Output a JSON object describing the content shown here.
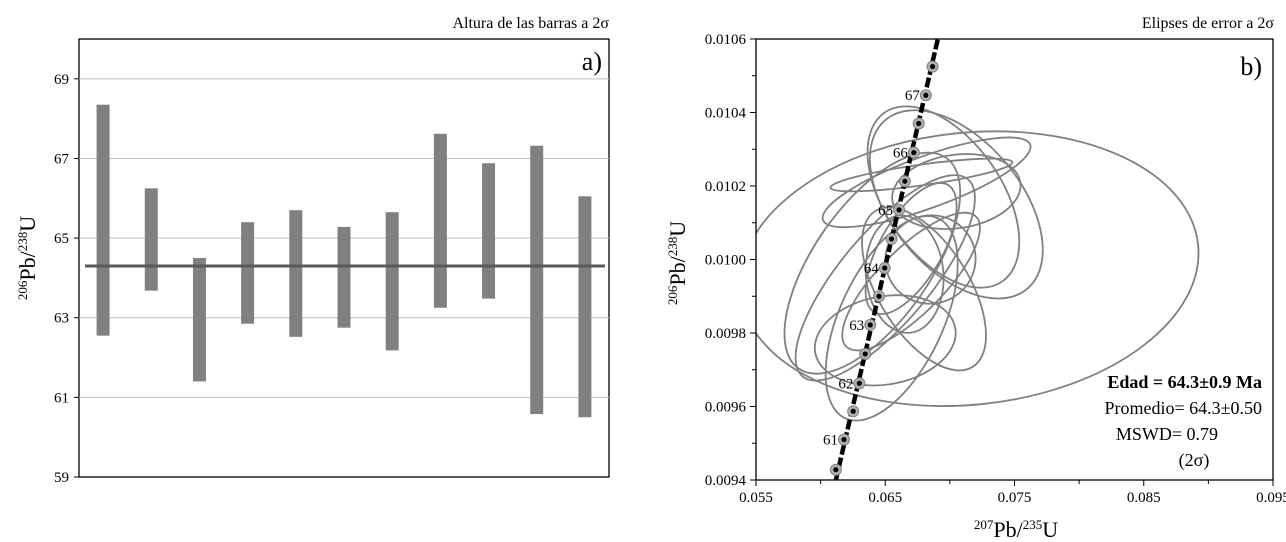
{
  "chart_data": [
    {
      "type": "bar",
      "subtype": "error-bar (range) plot",
      "title": "Altura de las barras a 2σ",
      "panel_label": "a)",
      "ylabel": {
        "sup1": "206",
        "main1": "Pb/",
        "sup2": "238",
        "main2": "U"
      },
      "ylim": [
        59,
        70
      ],
      "yticks": [
        59,
        61,
        63,
        65,
        67,
        69
      ],
      "grid": true,
      "bar_color": "#808080",
      "mean_line_color": "#595959",
      "mean": 64.3,
      "ranges": [
        [
          62.55,
          68.35
        ],
        [
          63.68,
          66.25
        ],
        [
          61.4,
          64.5
        ],
        [
          62.85,
          65.4
        ],
        [
          62.52,
          65.7
        ],
        [
          62.75,
          65.28
        ],
        [
          62.18,
          65.65
        ],
        [
          63.25,
          67.62
        ],
        [
          63.48,
          66.88
        ],
        [
          60.58,
          67.32
        ],
        [
          60.5,
          66.05
        ]
      ]
    },
    {
      "type": "scatter",
      "subtype": "concordia diagram with 2σ error ellipses",
      "title": "Elipses de error a 2σ",
      "panel_label": "b)",
      "xlabel": {
        "sup1": "207",
        "main1": "Pb/",
        "sup2": "235",
        "main2": "U"
      },
      "ylabel": {
        "sup1": "206",
        "main1": "Pb/",
        "sup2": "238",
        "main2": "U"
      },
      "xlim": [
        0.055,
        0.095
      ],
      "ylim": [
        0.0094,
        0.0106
      ],
      "xticks": [
        "0.055",
        "0.065",
        "0.075",
        "0.085",
        "0.095"
      ],
      "yticks": [
        "0.0094",
        "0.0096",
        "0.0098",
        "0.0100",
        "0.0102",
        "0.0104",
        "0.0106"
      ],
      "grid": false,
      "concordia_color": "#000000",
      "ellipse_color": "#808080",
      "concordia_line": [
        [
          0.06118,
          0.0094
        ],
        [
          0.06907,
          0.0106
        ]
      ],
      "age_markers": [
        {
          "x": 0.06118,
          "y": 0.009428
        },
        {
          "x": 0.06181,
          "y": 0.00951,
          "label": "61"
        },
        {
          "x": 0.06252,
          "y": 0.009587
        },
        {
          "x": 0.063,
          "y": 0.009663,
          "label": "62"
        },
        {
          "x": 0.06345,
          "y": 0.009743
        },
        {
          "x": 0.06384,
          "y": 0.009822,
          "label": "63"
        },
        {
          "x": 0.06452,
          "y": 0.0099
        },
        {
          "x": 0.06496,
          "y": 0.009977,
          "label": "64"
        },
        {
          "x": 0.06548,
          "y": 0.010056
        },
        {
          "x": 0.06607,
          "y": 0.010135,
          "label": "65"
        },
        {
          "x": 0.06652,
          "y": 0.010213
        },
        {
          "x": 0.06721,
          "y": 0.010291,
          "label": "66"
        },
        {
          "x": 0.06759,
          "y": 0.01037
        },
        {
          "x": 0.06814,
          "y": 0.010447,
          "label": "67"
        },
        {
          "x": 0.06866,
          "y": 0.010525
        }
      ],
      "ellipses": [
        {
          "cx": 0.0715,
          "cy": 0.009975,
          "rx": 0.0178,
          "ry": 0.00037,
          "angle": -6
        },
        {
          "cx": 0.0705,
          "cy": 0.01015,
          "rx": 0.005,
          "ry": 0.0003,
          "angle": -40
        },
        {
          "cx": 0.0695,
          "cy": 0.01017,
          "rx": 0.0045,
          "ry": 0.00028,
          "angle": -35
        },
        {
          "cx": 0.0705,
          "cy": 0.010185,
          "rx": 0.005,
          "ry": 0.0001,
          "angle": -8
        },
        {
          "cx": 0.0682,
          "cy": 0.01021,
          "rx": 0.002,
          "ry": 0.0003,
          "angle": 70
        },
        {
          "cx": 0.0678,
          "cy": 0.01023,
          "rx": 0.0008,
          "ry": 0.00025,
          "angle": 82
        },
        {
          "cx": 0.067,
          "cy": 0.01003,
          "rx": 0.0024,
          "ry": 0.0002,
          "angle": 30
        },
        {
          "cx": 0.0685,
          "cy": 0.01,
          "rx": 0.0035,
          "ry": 0.00012,
          "angle": -20
        },
        {
          "cx": 0.0665,
          "cy": 0.00996,
          "rx": 0.003,
          "ry": 0.00016,
          "angle": -5
        },
        {
          "cx": 0.068,
          "cy": 0.00992,
          "rx": 0.0035,
          "ry": 0.00025,
          "angle": -32
        },
        {
          "cx": 0.067,
          "cy": 0.00994,
          "rx": 0.0025,
          "ry": 0.00025,
          "angle": 45
        },
        {
          "cx": 0.065,
          "cy": 0.00978,
          "rx": 0.0055,
          "ry": 0.00012,
          "angle": -10
        },
        {
          "cx": 0.0655,
          "cy": 0.00984,
          "rx": 0.004,
          "ry": 0.0003,
          "angle": 25
        },
        {
          "cx": 0.065,
          "cy": 0.00995,
          "rx": 0.0035,
          "ry": 0.00035,
          "angle": 40
        },
        {
          "cx": 0.064,
          "cy": 0.00999,
          "rx": 0.0045,
          "ry": 0.00035,
          "angle": 35
        }
      ],
      "annotations": {
        "age": "Edad = 64.3±0.9 Ma",
        "mean": "Promedio= 64.3±0.50",
        "mswd": "MSWD= 0.79",
        "sigma": "(2σ)"
      }
    }
  ]
}
